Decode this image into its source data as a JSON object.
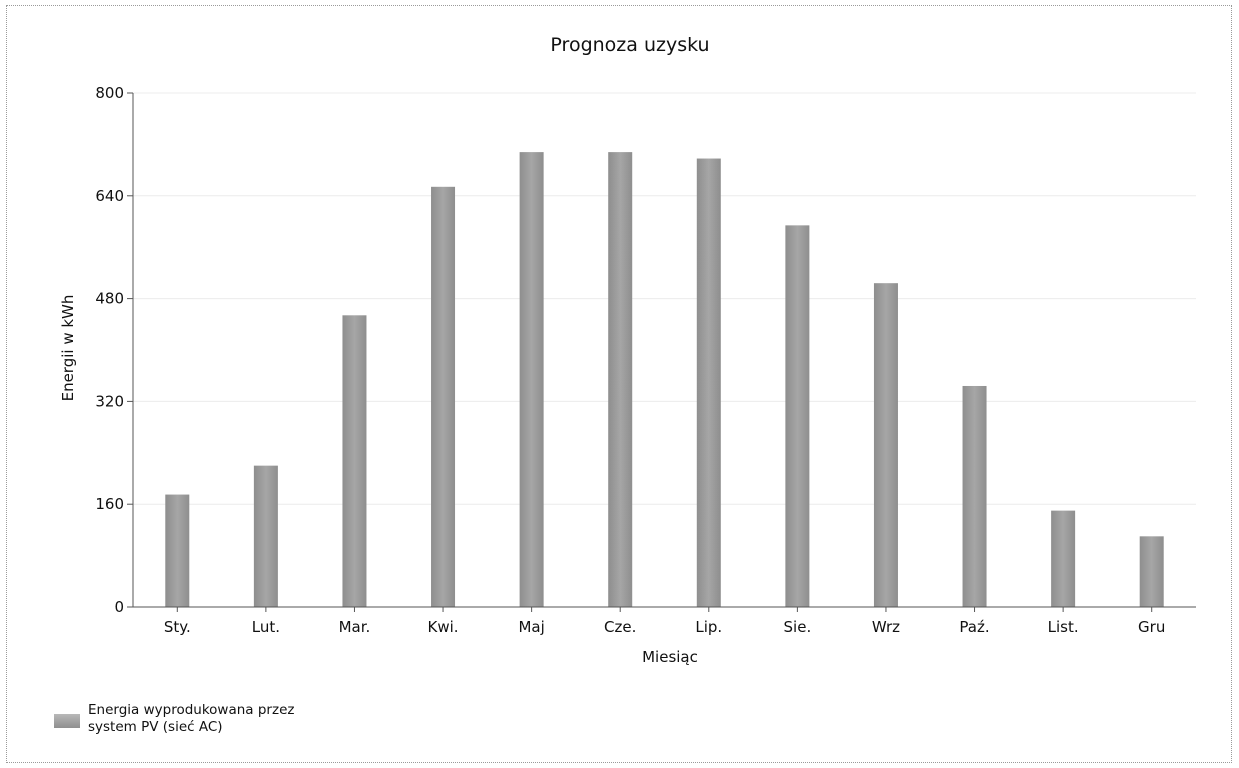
{
  "chart_data": {
    "type": "bar",
    "title": "Prognoza uzysku",
    "xlabel": "Miesiąc",
    "ylabel": "Energii w kWh",
    "ylim": [
      0,
      800
    ],
    "yticks": [
      0,
      160,
      320,
      480,
      640,
      800
    ],
    "categories": [
      "Sty.",
      "Lut.",
      "Mar.",
      "Kwi.",
      "Maj",
      "Cze.",
      "Lip.",
      "Sie.",
      "Wrz",
      "Paź.",
      "List.",
      "Gru"
    ],
    "series": [
      {
        "name": "Energia wyprodukowana przez system PV (sieć AC)",
        "values": [
          175,
          220,
          454,
          654,
          708,
          708,
          698,
          594,
          504,
          344,
          150,
          110
        ]
      }
    ],
    "grid": true,
    "legend_position": "bottom-left"
  },
  "legend": {
    "line1": "Energia wyprodukowana przez",
    "line2": "system PV (sieć AC)",
    "color": "#a6a6a6"
  }
}
